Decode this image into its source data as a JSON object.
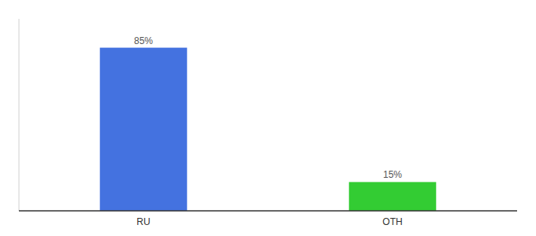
{
  "chart_data": {
    "type": "bar",
    "categories": [
      "RU",
      "OTH"
    ],
    "values": [
      85,
      15
    ],
    "value_labels": [
      "85%",
      "15%"
    ],
    "colors": [
      "#4472e0",
      "#33cc33"
    ],
    "ylim": [
      0,
      100
    ],
    "data_labels": true,
    "tick_labels": "x",
    "grid": false
  }
}
